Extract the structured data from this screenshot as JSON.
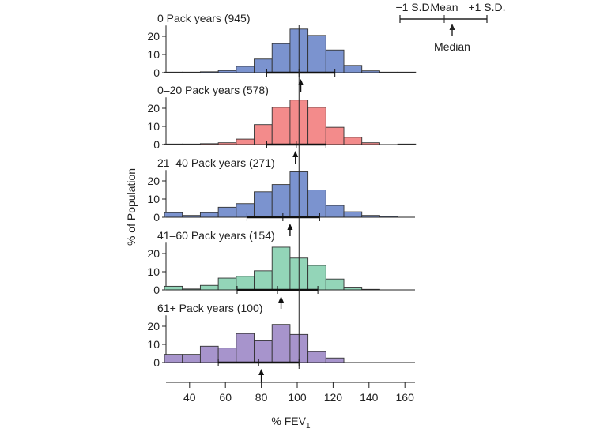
{
  "chart_data": {
    "type": "bar",
    "subtype": "stacked-histogram-panels",
    "xlabel": "% FEV",
    "xlabel_subscript": "1",
    "ylabel": "% of Population",
    "xlim": [
      26,
      166
    ],
    "xticks": [
      40,
      60,
      80,
      100,
      120,
      140,
      160
    ],
    "ylim": [
      0,
      26
    ],
    "yticks": [
      0,
      10,
      20
    ],
    "bin_edges": [
      26,
      36,
      46,
      56,
      66,
      76,
      86,
      96,
      106,
      116,
      126,
      136,
      146,
      156,
      166
    ],
    "reference_line_x": 101,
    "legend": {
      "minus_sd": "−1 S.D.",
      "mean": "Mean",
      "plus_sd": "+1 S.D.",
      "median": "Median",
      "placement": "top-right"
    },
    "series": [
      {
        "name": "0 Pack years (945)",
        "color": "#7b93cf",
        "values": [
          0.3,
          0.3,
          0.5,
          1.2,
          3.5,
          7.5,
          16,
          24,
          20.5,
          12.5,
          4,
          1,
          0.3,
          0.3
        ],
        "mean": 101,
        "sd_low": 83,
        "sd_high": 121,
        "median": 102
      },
      {
        "name": "0–20 Pack years (578)",
        "color": "#f38b8b",
        "values": [
          0.3,
          0.3,
          0.5,
          1,
          3,
          11,
          20.5,
          24.5,
          20.5,
          9.5,
          4,
          1,
          0,
          0.3
        ],
        "mean": 99.5,
        "sd_low": 83,
        "sd_high": 116,
        "median": 99
      },
      {
        "name": "21–40 Pack years (271)",
        "color": "#7b93cf",
        "values": [
          2.5,
          1,
          2.5,
          5.5,
          7.5,
          14,
          18,
          25,
          15,
          6.5,
          3,
          1,
          0.5,
          0
        ],
        "mean": 92,
        "sd_low": 72,
        "sd_high": 112.5,
        "median": 96
      },
      {
        "name": "41–60 Pack years (154)",
        "color": "#93d5b8",
        "values": [
          2,
          0.5,
          2.5,
          6.5,
          7.5,
          10.5,
          23.5,
          17.5,
          13.5,
          6,
          1.5,
          0.3,
          0,
          0
        ],
        "mean": 89,
        "sd_low": 66.5,
        "sd_high": 111.5,
        "median": 91
      },
      {
        "name": "61+ Pack years (100)",
        "color": "#a794cc",
        "values": [
          4.5,
          4.5,
          9,
          8,
          16,
          12,
          21,
          15.5,
          6,
          2.5,
          0,
          0,
          0,
          0
        ],
        "mean": 78.5,
        "sd_low": 56,
        "sd_high": 101,
        "median": 80
      }
    ]
  }
}
